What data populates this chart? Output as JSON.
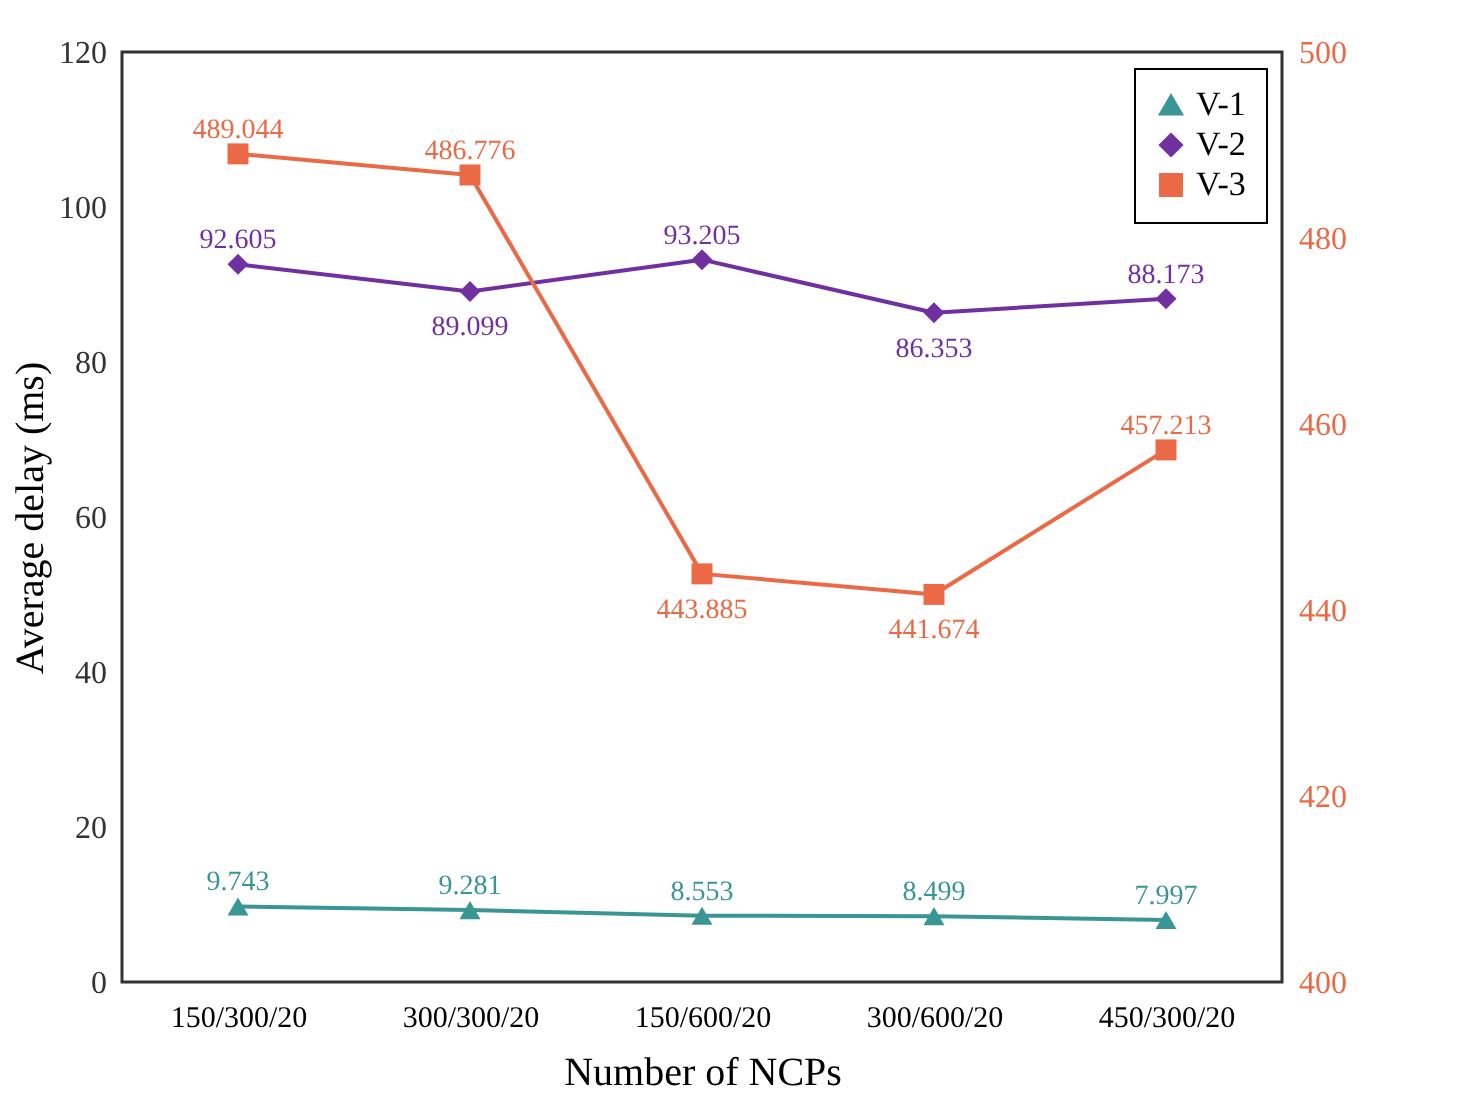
{
  "chart_data": {
    "type": "line",
    "xlabel": "Number of NCPs",
    "ylabel": "Average delay (ms)",
    "categories": [
      "150/300/20",
      "300/300/20",
      "150/600/20",
      "300/600/20",
      "450/300/20"
    ],
    "series": [
      {
        "name": "V-1",
        "color": "#3a9595",
        "marker": "triangle",
        "values": [
          9.743,
          9.281,
          8.553,
          8.499,
          7.997
        ]
      },
      {
        "name": "V-2",
        "color": "#7030a0",
        "marker": "diamond",
        "values": [
          92.605,
          89.099,
          93.205,
          86.353,
          88.173
        ]
      },
      {
        "name": "V-3",
        "color": "#eb6a45",
        "marker": "square",
        "axis": "y2",
        "values": [
          489.044,
          486.776,
          443.885,
          441.674,
          457.213
        ]
      }
    ],
    "ylim": [
      0,
      120
    ],
    "yticks": [
      0,
      20,
      40,
      60,
      80,
      100,
      120
    ],
    "y2lim": [
      400,
      500
    ],
    "y2ticks": [
      400,
      420,
      440,
      460,
      480,
      500
    ],
    "data_labels": true,
    "legend": "top right"
  }
}
